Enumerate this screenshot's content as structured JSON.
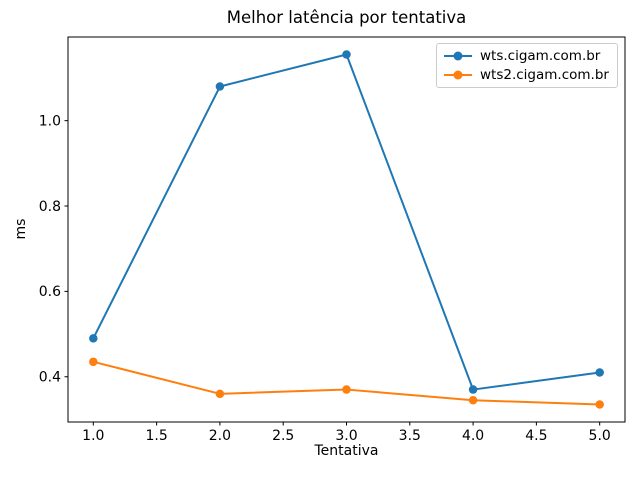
{
  "figure": {
    "background": "#ffffff",
    "text_color": "#000000",
    "axes_color": "#000000",
    "legend_border_color": "#cccccc"
  },
  "chart_data": {
    "type": "line",
    "title": "Melhor latência por tentativa",
    "xlabel": "Tentativa",
    "ylabel": "ms",
    "x": [
      1,
      2,
      3,
      4,
      5
    ],
    "series": [
      {
        "name": "wts.cigam.com.br",
        "color": "#1f77b4",
        "values": [
          0.49,
          1.08,
          1.155,
          0.37,
          0.41
        ]
      },
      {
        "name": "wts2.cigam.com.br",
        "color": "#ff7f0e",
        "values": [
          0.435,
          0.36,
          0.37,
          0.345,
          0.335
        ]
      }
    ],
    "xticks": [
      1.0,
      1.5,
      2.0,
      2.5,
      3.0,
      3.5,
      4.0,
      4.5,
      5.0
    ],
    "yticks": [
      0.4,
      0.6,
      0.8,
      1.0
    ],
    "xlim": [
      0.8,
      5.2
    ],
    "ylim": [
      0.294,
      1.196
    ],
    "grid": false,
    "legend_position": "upper right",
    "marker": "o",
    "line_width": 2,
    "marker_size": 8.5
  }
}
